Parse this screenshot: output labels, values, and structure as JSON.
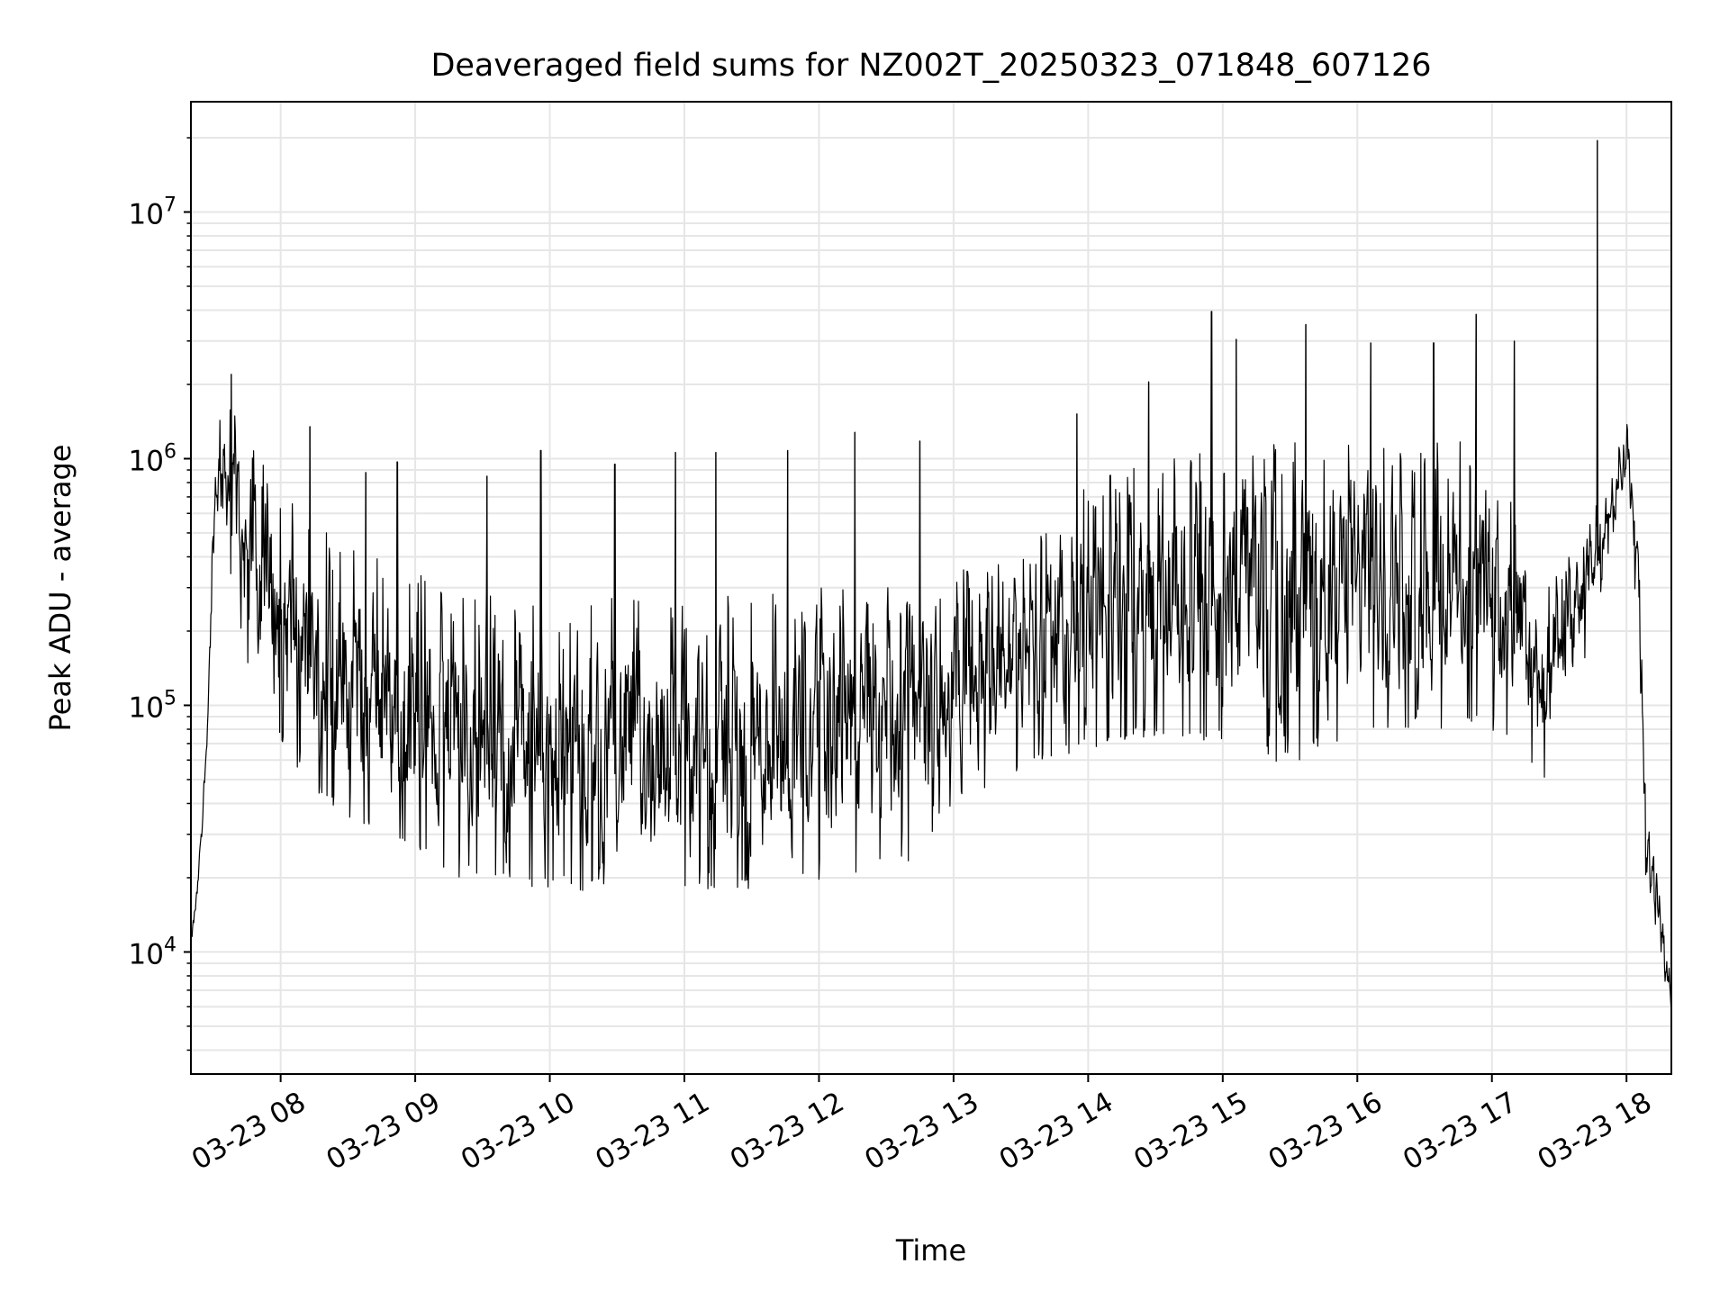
{
  "chart_data": {
    "type": "line",
    "title": "Deaveraged field sums for NZ002T_20250323_071848_607126",
    "xlabel": "Time",
    "ylabel": "Peak ADU - average",
    "y_scale": "log",
    "x_range": [
      "03-23 07:20",
      "03-23 18:20"
    ],
    "ylim": [
      3200,
      28000000
    ],
    "x_ticks": [
      "03-23 08",
      "03-23 09",
      "03-23 10",
      "03-23 11",
      "03-23 12",
      "03-23 13",
      "03-23 14",
      "03-23 15",
      "03-23 16",
      "03-23 17",
      "03-23 18"
    ],
    "y_ticks": [
      {
        "base": "10",
        "exp": "4",
        "value": 10000
      },
      {
        "base": "10",
        "exp": "5",
        "value": 100000
      },
      {
        "base": "10",
        "exp": "6",
        "value": 1000000
      },
      {
        "base": "10",
        "exp": "7",
        "value": 10000000
      }
    ],
    "grid": true,
    "line_color": "#000000",
    "grid_color": "#e6e6e6",
    "series": [
      {
        "envelope": [
          {
            "x": "03-23 07:20",
            "low": 9500,
            "high": 12000
          },
          {
            "x": "03-23 07:23",
            "low": 16000,
            "high": 20000
          },
          {
            "x": "03-23 07:27",
            "low": 60000,
            "high": 80000
          },
          {
            "x": "03-23 07:31",
            "low": 500000,
            "high": 1300000
          },
          {
            "x": "03-23 07:36",
            "low": 400000,
            "high": 2000000
          },
          {
            "x": "03-23 07:45",
            "low": 150000,
            "high": 1200000
          },
          {
            "x": "03-23 07:55",
            "low": 80000,
            "high": 900000
          },
          {
            "x": "03-23 08:10",
            "low": 50000,
            "high": 600000
          },
          {
            "x": "03-23 08:30",
            "low": 35000,
            "high": 450000
          },
          {
            "x": "03-23 08:50",
            "low": 28000,
            "high": 380000
          },
          {
            "x": "03-23 09:20",
            "low": 20000,
            "high": 300000
          },
          {
            "x": "03-23 10:00",
            "low": 18000,
            "high": 280000
          },
          {
            "x": "03-23 10:40",
            "low": 17000,
            "high": 280000
          },
          {
            "x": "03-23 11:20",
            "low": 17000,
            "high": 280000
          },
          {
            "x": "03-23 12:00",
            "low": 19000,
            "high": 300000
          },
          {
            "x": "03-23 12:40",
            "low": 22000,
            "high": 320000
          },
          {
            "x": "03-23 13:00",
            "low": 40000,
            "high": 350000
          },
          {
            "x": "03-23 13:30",
            "low": 55000,
            "high": 400000
          },
          {
            "x": "03-23 14:00",
            "low": 65000,
            "high": 800000
          },
          {
            "x": "03-23 14:30",
            "low": 75000,
            "high": 1000000
          },
          {
            "x": "03-23 15:00",
            "low": 70000,
            "high": 1100000
          },
          {
            "x": "03-23 15:30",
            "low": 55000,
            "high": 1200000
          },
          {
            "x": "03-23 16:00",
            "low": 80000,
            "high": 1300000
          },
          {
            "x": "03-23 16:30",
            "low": 80000,
            "high": 1300000
          },
          {
            "x": "03-23 17:00",
            "low": 80000,
            "high": 1100000
          },
          {
            "x": "03-23 17:25",
            "low": 45000,
            "high": 300000
          },
          {
            "x": "03-23 17:45",
            "low": 200000,
            "high": 600000
          },
          {
            "x": "03-23 18:00",
            "low": 900000,
            "high": 1500000
          },
          {
            "x": "03-23 18:05",
            "low": 200000,
            "high": 600000
          },
          {
            "x": "03-23 18:09",
            "low": 15000,
            "high": 40000
          },
          {
            "x": "03-23 18:15",
            "low": 9000,
            "high": 20000
          },
          {
            "x": "03-23 18:20",
            "low": 5000,
            "high": 7000
          }
        ],
        "spikes": [
          {
            "x": "03-23 07:38",
            "y": 2200000
          },
          {
            "x": "03-23 08:13",
            "y": 1350000
          },
          {
            "x": "03-23 08:38",
            "y": 880000
          },
          {
            "x": "03-23 08:52",
            "y": 970000
          },
          {
            "x": "03-23 09:32",
            "y": 850000
          },
          {
            "x": "03-23 09:56",
            "y": 1080000
          },
          {
            "x": "03-23 10:29",
            "y": 950000
          },
          {
            "x": "03-23 10:56",
            "y": 1060000
          },
          {
            "x": "03-23 11:14",
            "y": 1060000
          },
          {
            "x": "03-23 11:46",
            "y": 1080000
          },
          {
            "x": "03-23 12:16",
            "y": 1280000
          },
          {
            "x": "03-23 12:45",
            "y": 1180000
          },
          {
            "x": "03-23 13:55",
            "y": 1520000
          },
          {
            "x": "03-23 14:27",
            "y": 2050000
          },
          {
            "x": "03-23 14:55",
            "y": 3950000
          },
          {
            "x": "03-23 15:06",
            "y": 3050000
          },
          {
            "x": "03-23 15:37",
            "y": 3500000
          },
          {
            "x": "03-23 16:06",
            "y": 2950000
          },
          {
            "x": "03-23 16:34",
            "y": 2950000
          },
          {
            "x": "03-23 16:53",
            "y": 3850000
          },
          {
            "x": "03-23 17:10",
            "y": 3000000
          },
          {
            "x": "03-23 17:47",
            "y": 19500000
          }
        ]
      }
    ]
  }
}
